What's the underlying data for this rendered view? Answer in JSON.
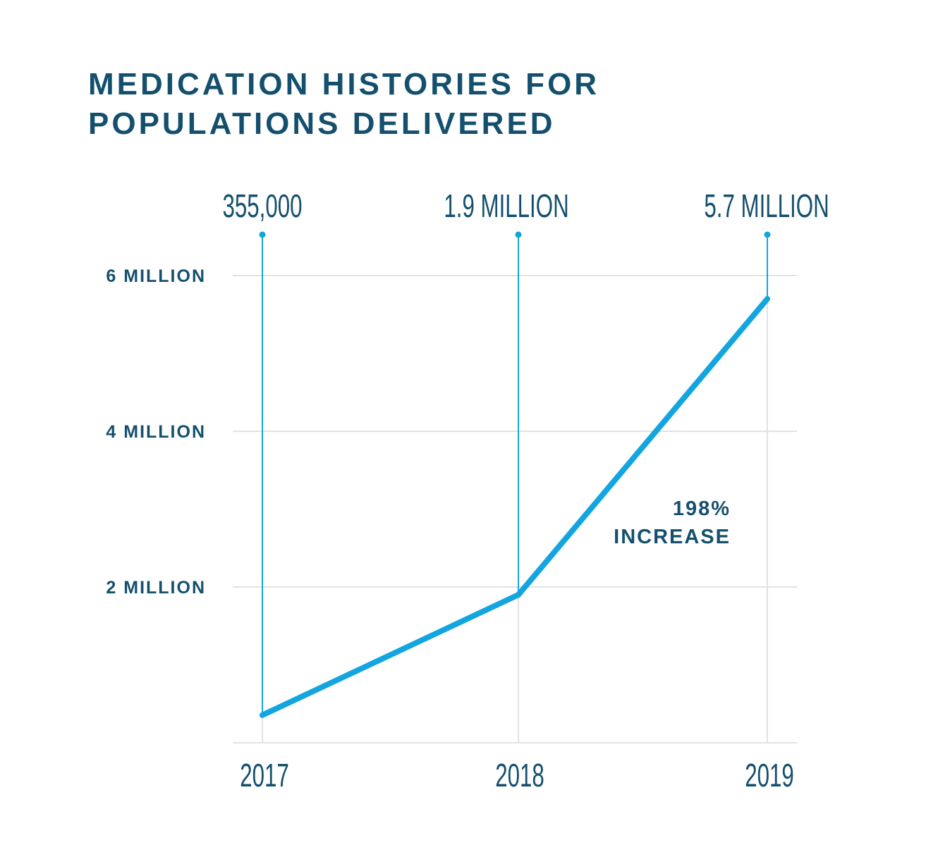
{
  "chart_data": {
    "type": "line",
    "title": "MEDICATION HISTORIES FOR POPULATIONS DELIVERED",
    "title_lines": [
      "MEDICATION HISTORIES FOR",
      "POPULATIONS DELIVERED"
    ],
    "categories": [
      "2017",
      "2018",
      "2019"
    ],
    "values": [
      355000,
      1900000,
      5700000
    ],
    "data_labels": [
      "355,000",
      "1.9 MILLION",
      "5.7 MILLION"
    ],
    "y_ticks": [
      2000000,
      4000000,
      6000000
    ],
    "y_tick_labels": [
      "2 MILLION",
      "4 MILLION",
      "6 MILLION"
    ],
    "ylim": [
      0,
      6000000
    ],
    "xlabel": "",
    "ylabel": "",
    "grid": true,
    "annotation": [
      "198%",
      "INCREASE"
    ],
    "colors": {
      "line": "#12a5df",
      "text": "#14506e",
      "grid": "#dfe3e6"
    }
  }
}
